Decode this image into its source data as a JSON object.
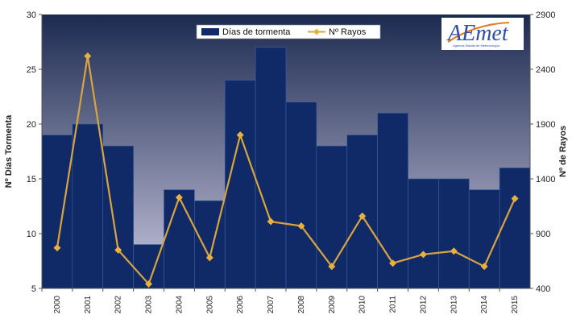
{
  "colors": {
    "bar": "#0f2a66",
    "bar_stroke": "#3c5a9a",
    "line": "#d9a440",
    "marker": "#e8b03c",
    "plot_bg_top": "#1c2a50",
    "plot_bg_bottom": "#c9c7df",
    "logo": "#2e4fa3",
    "logo_accent": "#e07a1f"
  },
  "logo": {
    "text": "AEmet",
    "subtitle": "Agencia Estatal de Meteorología"
  },
  "chart_data": {
    "type": "bar",
    "categories": [
      "2000",
      "2001",
      "2002",
      "2003",
      "2004",
      "2005",
      "2006",
      "2007",
      "2008",
      "2009",
      "2010",
      "2011",
      "2012",
      "2013",
      "2014",
      "2015"
    ],
    "series": [
      {
        "name": "Días de tormenta",
        "type": "bar",
        "axis": "left",
        "values": [
          19,
          20,
          18,
          9,
          14,
          13,
          24,
          27,
          22,
          18,
          19,
          21,
          15,
          15,
          14,
          16
        ]
      },
      {
        "name": "Nº Rayos",
        "type": "line",
        "axis": "right",
        "values": [
          770,
          2520,
          750,
          440,
          1230,
          680,
          1800,
          1010,
          970,
          600,
          1060,
          630,
          710,
          740,
          600,
          1220
        ]
      }
    ],
    "ylabel": "Nº Días Tormenta",
    "y2label": "Nº de Rayos",
    "ylim": [
      5,
      30
    ],
    "y2lim": [
      400,
      2900
    ],
    "yticks": [
      5,
      10,
      15,
      20,
      25,
      30
    ],
    "y2ticks": [
      400,
      900,
      1400,
      1900,
      2400,
      2900
    ],
    "legend_position": "top-center",
    "grid": false
  }
}
